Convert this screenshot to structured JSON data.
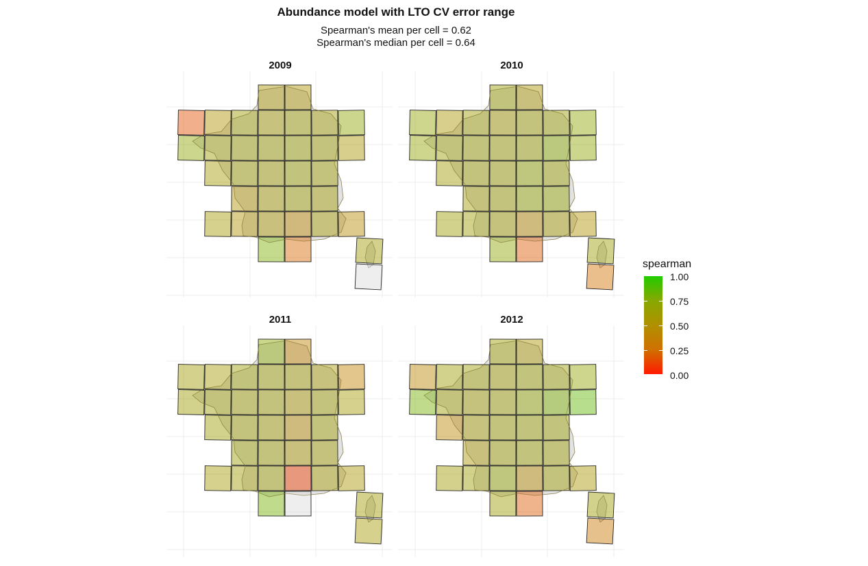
{
  "title": "Abundance model with LTO CV error range",
  "subtitle_lines": [
    "Spearman's mean per cell = 0.62",
    "Spearman's median per cell = 0.64"
  ],
  "chart_data": {
    "type": "heatmap",
    "title": "Abundance model with LTO CV error range",
    "legend": {
      "title": "spearman",
      "ticks": [
        "1.00",
        "0.75",
        "0.50",
        "0.25",
        "0.00"
      ],
      "range": [
        0,
        1
      ],
      "low_color": "#ff0000",
      "high_color": "#00cc00",
      "placement": "right"
    },
    "grid": true,
    "na_color": "#d9d9d9",
    "panels": [
      {
        "year": "2009",
        "cells": [
          {
            "row": 0,
            "col": 3,
            "value": 0.55
          },
          {
            "row": 0,
            "col": 4,
            "value": 0.52
          },
          {
            "row": 1,
            "col": 0,
            "value": 0.15
          },
          {
            "row": 1,
            "col": 1,
            "value": 0.5
          },
          {
            "row": 1,
            "col": 2,
            "value": 0.62
          },
          {
            "row": 1,
            "col": 3,
            "value": 0.58
          },
          {
            "row": 1,
            "col": 4,
            "value": 0.62
          },
          {
            "row": 1,
            "col": 5,
            "value": 0.6
          },
          {
            "row": 1,
            "col": 6,
            "value": 0.72
          },
          {
            "row": 2,
            "col": 0,
            "value": 0.72
          },
          {
            "row": 2,
            "col": 1,
            "value": 0.62
          },
          {
            "row": 2,
            "col": 2,
            "value": 0.65
          },
          {
            "row": 2,
            "col": 3,
            "value": 0.62
          },
          {
            "row": 2,
            "col": 4,
            "value": 0.65
          },
          {
            "row": 2,
            "col": 5,
            "value": 0.62
          },
          {
            "row": 2,
            "col": 6,
            "value": 0.55
          },
          {
            "row": 3,
            "col": 1,
            "value": 0.58
          },
          {
            "row": 3,
            "col": 2,
            "value": 0.62
          },
          {
            "row": 3,
            "col": 3,
            "value": 0.6
          },
          {
            "row": 3,
            "col": 4,
            "value": 0.65
          },
          {
            "row": 3,
            "col": 5,
            "value": 0.62
          },
          {
            "row": 4,
            "col": 2,
            "value": 0.5
          },
          {
            "row": 4,
            "col": 3,
            "value": 0.58
          },
          {
            "row": 4,
            "col": 4,
            "value": 0.62
          },
          {
            "row": 4,
            "col": 5,
            "value": 0.6
          },
          {
            "row": 5,
            "col": 1,
            "value": 0.58
          },
          {
            "row": 5,
            "col": 2,
            "value": 0.5
          },
          {
            "row": 5,
            "col": 3,
            "value": 0.55
          },
          {
            "row": 5,
            "col": 4,
            "value": 0.42
          },
          {
            "row": 5,
            "col": 5,
            "value": 0.58
          },
          {
            "row": 5,
            "col": 6,
            "value": 0.45
          },
          {
            "row": 6,
            "col": 3,
            "value": 0.78
          },
          {
            "row": 6,
            "col": 4,
            "value": 0.22
          },
          {
            "row": 6,
            "col": 7,
            "value": 0.6
          },
          {
            "row": 7,
            "col": 7,
            "value": null
          }
        ]
      },
      {
        "year": "2010",
        "cells": [
          {
            "row": 0,
            "col": 3,
            "value": 0.65
          },
          {
            "row": 0,
            "col": 4,
            "value": 0.55
          },
          {
            "row": 1,
            "col": 0,
            "value": 0.68
          },
          {
            "row": 1,
            "col": 1,
            "value": 0.55
          },
          {
            "row": 1,
            "col": 2,
            "value": 0.62
          },
          {
            "row": 1,
            "col": 3,
            "value": 0.58
          },
          {
            "row": 1,
            "col": 4,
            "value": 0.62
          },
          {
            "row": 1,
            "col": 5,
            "value": 0.65
          },
          {
            "row": 1,
            "col": 6,
            "value": 0.72
          },
          {
            "row": 2,
            "col": 0,
            "value": 0.7
          },
          {
            "row": 2,
            "col": 1,
            "value": 0.65
          },
          {
            "row": 2,
            "col": 2,
            "value": 0.65
          },
          {
            "row": 2,
            "col": 3,
            "value": 0.62
          },
          {
            "row": 2,
            "col": 4,
            "value": 0.65
          },
          {
            "row": 2,
            "col": 5,
            "value": 0.75
          },
          {
            "row": 2,
            "col": 6,
            "value": 0.72
          },
          {
            "row": 3,
            "col": 1,
            "value": 0.6
          },
          {
            "row": 3,
            "col": 2,
            "value": 0.62
          },
          {
            "row": 3,
            "col": 3,
            "value": 0.62
          },
          {
            "row": 3,
            "col": 4,
            "value": 0.68
          },
          {
            "row": 3,
            "col": 5,
            "value": 0.65
          },
          {
            "row": 4,
            "col": 2,
            "value": 0.6
          },
          {
            "row": 4,
            "col": 3,
            "value": 0.62
          },
          {
            "row": 4,
            "col": 4,
            "value": 0.68
          },
          {
            "row": 4,
            "col": 5,
            "value": 0.68
          },
          {
            "row": 5,
            "col": 1,
            "value": 0.62
          },
          {
            "row": 5,
            "col": 2,
            "value": 0.62
          },
          {
            "row": 5,
            "col": 3,
            "value": 0.6
          },
          {
            "row": 5,
            "col": 4,
            "value": 0.45
          },
          {
            "row": 5,
            "col": 5,
            "value": 0.58
          },
          {
            "row": 5,
            "col": 6,
            "value": 0.5
          },
          {
            "row": 6,
            "col": 3,
            "value": 0.72
          },
          {
            "row": 6,
            "col": 4,
            "value": 0.18
          },
          {
            "row": 6,
            "col": 7,
            "value": 0.65
          },
          {
            "row": 7,
            "col": 7,
            "value": 0.25
          }
        ]
      },
      {
        "year": "2011",
        "cells": [
          {
            "row": 0,
            "col": 3,
            "value": 0.75
          },
          {
            "row": 0,
            "col": 4,
            "value": 0.38
          },
          {
            "row": 1,
            "col": 0,
            "value": 0.6
          },
          {
            "row": 1,
            "col": 1,
            "value": 0.58
          },
          {
            "row": 1,
            "col": 2,
            "value": 0.65
          },
          {
            "row": 1,
            "col": 3,
            "value": 0.62
          },
          {
            "row": 1,
            "col": 4,
            "value": 0.6
          },
          {
            "row": 1,
            "col": 5,
            "value": 0.58
          },
          {
            "row": 1,
            "col": 6,
            "value": 0.38
          },
          {
            "row": 2,
            "col": 0,
            "value": 0.62
          },
          {
            "row": 2,
            "col": 1,
            "value": 0.62
          },
          {
            "row": 2,
            "col": 2,
            "value": 0.62
          },
          {
            "row": 2,
            "col": 3,
            "value": 0.62
          },
          {
            "row": 2,
            "col": 4,
            "value": 0.55
          },
          {
            "row": 2,
            "col": 5,
            "value": 0.62
          },
          {
            "row": 2,
            "col": 6,
            "value": 0.58
          },
          {
            "row": 3,
            "col": 1,
            "value": 0.62
          },
          {
            "row": 3,
            "col": 2,
            "value": 0.62
          },
          {
            "row": 3,
            "col": 3,
            "value": 0.6
          },
          {
            "row": 3,
            "col": 4,
            "value": 0.45
          },
          {
            "row": 3,
            "col": 5,
            "value": 0.62
          },
          {
            "row": 4,
            "col": 2,
            "value": 0.65
          },
          {
            "row": 4,
            "col": 3,
            "value": 0.62
          },
          {
            "row": 4,
            "col": 4,
            "value": 0.55
          },
          {
            "row": 4,
            "col": 5,
            "value": 0.6
          },
          {
            "row": 5,
            "col": 1,
            "value": 0.58
          },
          {
            "row": 5,
            "col": 2,
            "value": 0.6
          },
          {
            "row": 5,
            "col": 3,
            "value": 0.62
          },
          {
            "row": 5,
            "col": 4,
            "value": 0.1
          },
          {
            "row": 5,
            "col": 5,
            "value": 0.58
          },
          {
            "row": 5,
            "col": 6,
            "value": 0.55
          },
          {
            "row": 6,
            "col": 3,
            "value": 0.8
          },
          {
            "row": 6,
            "col": 4,
            "value": null
          },
          {
            "row": 6,
            "col": 7,
            "value": 0.6
          },
          {
            "row": 7,
            "col": 7,
            "value": 0.58
          }
        ]
      },
      {
        "year": "2012",
        "cells": [
          {
            "row": 0,
            "col": 3,
            "value": 0.62
          },
          {
            "row": 0,
            "col": 4,
            "value": 0.55
          },
          {
            "row": 1,
            "col": 0,
            "value": 0.42
          },
          {
            "row": 1,
            "col": 1,
            "value": 0.62
          },
          {
            "row": 1,
            "col": 2,
            "value": 0.62
          },
          {
            "row": 1,
            "col": 3,
            "value": 0.6
          },
          {
            "row": 1,
            "col": 4,
            "value": 0.65
          },
          {
            "row": 1,
            "col": 5,
            "value": 0.65
          },
          {
            "row": 1,
            "col": 6,
            "value": 0.7
          },
          {
            "row": 2,
            "col": 0,
            "value": 0.8
          },
          {
            "row": 2,
            "col": 1,
            "value": 0.62
          },
          {
            "row": 2,
            "col": 2,
            "value": 0.6
          },
          {
            "row": 2,
            "col": 3,
            "value": 0.62
          },
          {
            "row": 2,
            "col": 4,
            "value": 0.7
          },
          {
            "row": 2,
            "col": 5,
            "value": 0.78
          },
          {
            "row": 2,
            "col": 6,
            "value": 0.85
          },
          {
            "row": 3,
            "col": 1,
            "value": 0.42
          },
          {
            "row": 3,
            "col": 2,
            "value": 0.58
          },
          {
            "row": 3,
            "col": 3,
            "value": 0.62
          },
          {
            "row": 3,
            "col": 4,
            "value": 0.65
          },
          {
            "row": 3,
            "col": 5,
            "value": 0.65
          },
          {
            "row": 4,
            "col": 2,
            "value": 0.55
          },
          {
            "row": 4,
            "col": 3,
            "value": 0.62
          },
          {
            "row": 4,
            "col": 4,
            "value": 0.65
          },
          {
            "row": 4,
            "col": 5,
            "value": 0.62
          },
          {
            "row": 5,
            "col": 1,
            "value": 0.6
          },
          {
            "row": 5,
            "col": 2,
            "value": 0.62
          },
          {
            "row": 5,
            "col": 3,
            "value": 0.7
          },
          {
            "row": 5,
            "col": 4,
            "value": 0.45
          },
          {
            "row": 5,
            "col": 5,
            "value": 0.62
          },
          {
            "row": 5,
            "col": 6,
            "value": 0.55
          },
          {
            "row": 6,
            "col": 3,
            "value": 0.62
          },
          {
            "row": 6,
            "col": 4,
            "value": 0.18
          },
          {
            "row": 6,
            "col": 7,
            "value": 0.62
          },
          {
            "row": 7,
            "col": 7,
            "value": 0.3
          }
        ]
      }
    ]
  }
}
